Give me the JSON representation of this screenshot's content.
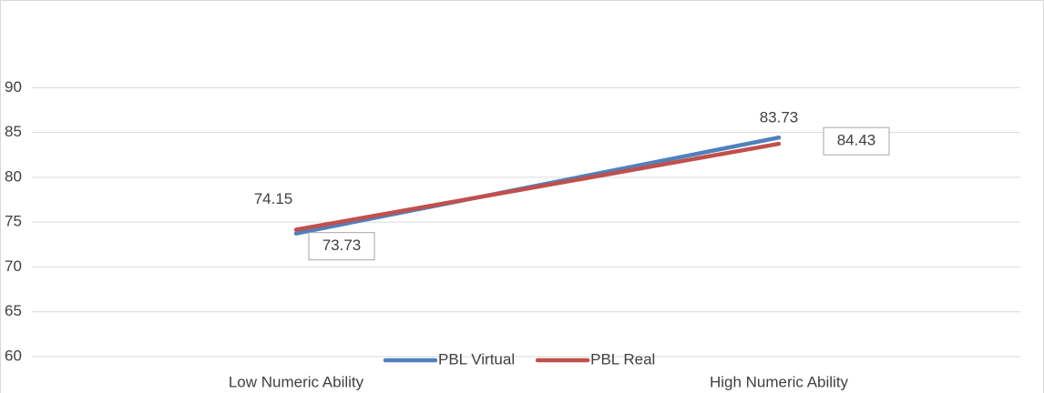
{
  "chart_data": {
    "type": "line",
    "categories": [
      "Low Numeric Ability",
      "High Numeric Ability"
    ],
    "series": [
      {
        "name": "PBL Virtual",
        "color": "#4f81bd",
        "values": [
          73.73,
          84.43
        ]
      },
      {
        "name": "PBL Real",
        "color": "#c0504d",
        "values": [
          74.15,
          83.73
        ]
      }
    ],
    "ylim": [
      60,
      95
    ],
    "yticks": [
      60,
      65,
      70,
      75,
      80,
      85,
      90
    ],
    "grid": true,
    "legend": "bottom"
  }
}
